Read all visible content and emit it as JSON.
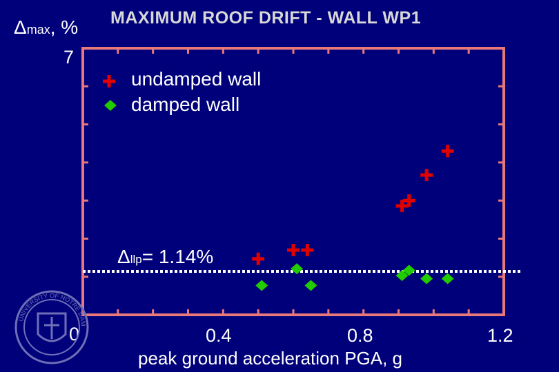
{
  "chart_data": {
    "type": "scatter",
    "title": "MAXIMUM ROOF DRIFT - WALL WP1",
    "xlabel": "peak ground acceleration PGA, g",
    "ylabel_symbol": "Δ",
    "ylabel_sub": "max",
    "ylabel_unit": ", %",
    "xlim": [
      0,
      1.2
    ],
    "ylim": [
      0,
      7
    ],
    "x_tick_labels": [
      "0",
      "0.4",
      "0.8",
      "1.2"
    ],
    "y_tick_labels": [
      "7"
    ],
    "grid": false,
    "legend_placement": "top-left",
    "series": [
      {
        "name": "undamped wall",
        "marker": "plus",
        "color": "#e00000",
        "points": [
          {
            "x": 0.5,
            "y": 1.47
          },
          {
            "x": 0.6,
            "y": 1.7
          },
          {
            "x": 0.64,
            "y": 1.7
          },
          {
            "x": 0.91,
            "y": 2.86
          },
          {
            "x": 0.93,
            "y": 3.0
          },
          {
            "x": 0.98,
            "y": 3.67
          },
          {
            "x": 1.04,
            "y": 4.3
          }
        ]
      },
      {
        "name": "damped wall",
        "marker": "diamond",
        "color": "#22cc00",
        "points": [
          {
            "x": 0.51,
            "y": 0.77
          },
          {
            "x": 0.61,
            "y": 1.21
          },
          {
            "x": 0.65,
            "y": 0.77
          },
          {
            "x": 0.91,
            "y": 1.03
          },
          {
            "x": 0.93,
            "y": 1.17
          },
          {
            "x": 0.98,
            "y": 0.95
          },
          {
            "x": 1.04,
            "y": 0.95
          }
        ]
      }
    ],
    "reference_line": {
      "y": 1.14,
      "style": "dotted",
      "color": "#ffffff"
    },
    "annotation": {
      "symbol": "Δ",
      "sub": "llp",
      "text": "= 1.14%"
    }
  },
  "colors": {
    "background": "#00007a",
    "frame": "#e8787a",
    "title": "#d8d8d8"
  },
  "decor": {
    "seal_icon": "university-seal-icon",
    "seal_text": "UNIVERSITY OF NOTRE DAME"
  }
}
